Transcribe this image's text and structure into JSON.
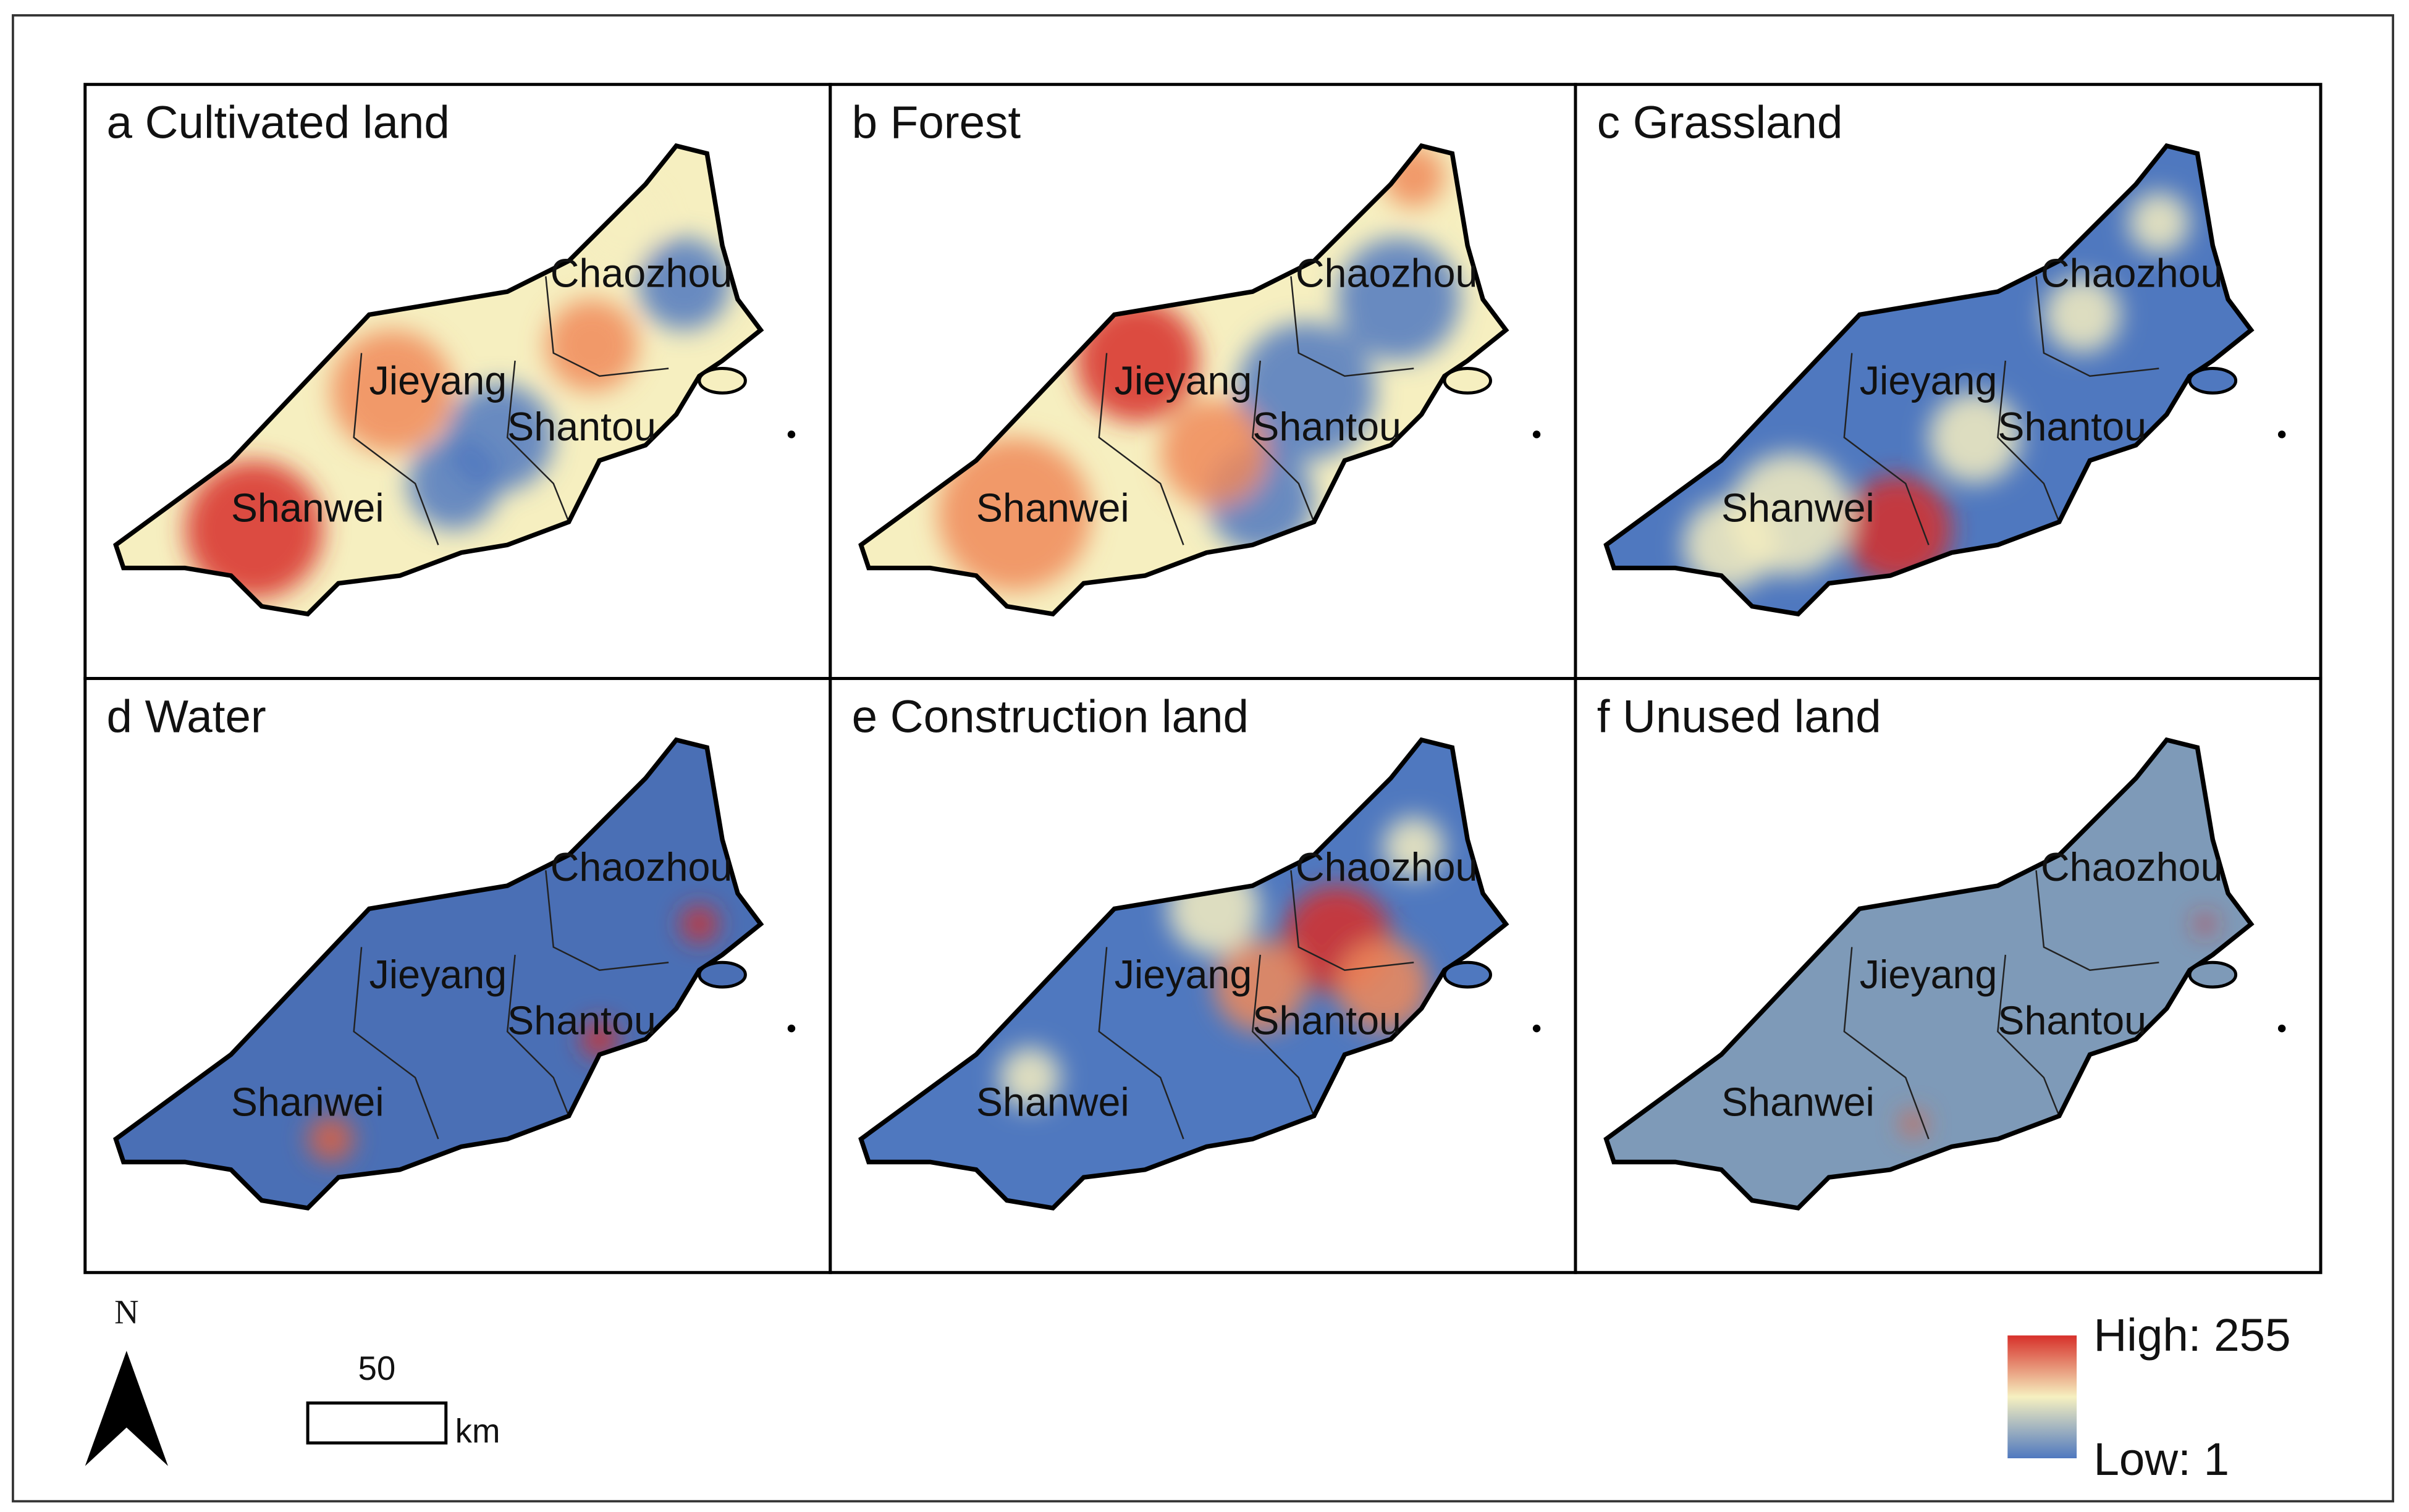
{
  "panels": [
    {
      "title": "a Cultivated land",
      "cities": [
        "Chaozhou",
        "Jieyang",
        "Shantou",
        "Shanwei"
      ]
    },
    {
      "title": "b Forest",
      "cities": [
        "Chaozhou",
        "Jieyang",
        "Shantou",
        "Shanwei"
      ]
    },
    {
      "title": "c Grassland",
      "cities": [
        "Chaozhou",
        "Jieyang",
        "Shantou",
        "Shanwei"
      ]
    },
    {
      "title": "d Water",
      "cities": [
        "Chaozhou",
        "Jieyang",
        "Shantou",
        "Shanwei"
      ]
    },
    {
      "title": "e Construction land",
      "cities": [
        "Chaozhou",
        "Jieyang",
        "Shantou",
        "Shanwei"
      ]
    },
    {
      "title": "f Unused land",
      "cities": [
        "Chaozhou",
        "Jieyang",
        "Shantou",
        "Shanwei"
      ]
    }
  ],
  "north": "N",
  "scale_bar": {
    "distance": "50",
    "unit": "km"
  },
  "legend": {
    "high": "High: 255",
    "low": "Low: 1"
  }
}
